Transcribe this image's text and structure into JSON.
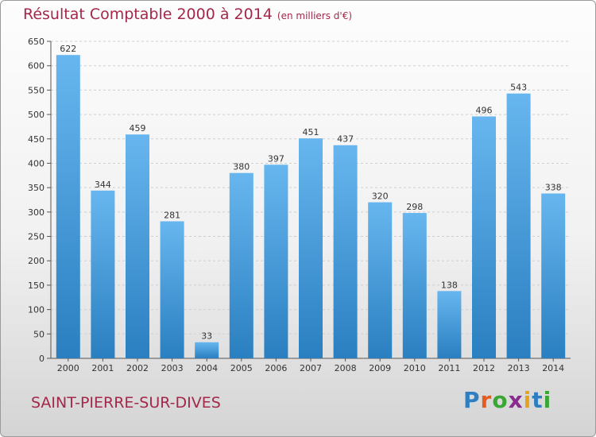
{
  "header": {
    "title": "Résultat Comptable 2000 à 2014",
    "subtitle": "(en milliers d'€)"
  },
  "footer": {
    "city": "SAINT-PIERRE-SUR-DIVES",
    "logo_letters": [
      "P",
      "r",
      "o",
      "x",
      "i",
      "t",
      "i"
    ],
    "logo_colors": [
      "#2e7fc2",
      "#e65c1e",
      "#3aa635",
      "#8a2b8f",
      "#e6a21e",
      "#2e7fc2",
      "#3aa635"
    ]
  },
  "chart_data": {
    "type": "bar",
    "title": "Résultat Comptable 2000 à 2014",
    "subtitle": "(en milliers d'€)",
    "categories": [
      "2000",
      "2001",
      "2002",
      "2003",
      "2004",
      "2005",
      "2006",
      "2007",
      "2008",
      "2009",
      "2010",
      "2011",
      "2012",
      "2013",
      "2014"
    ],
    "values": [
      622,
      344,
      459,
      281,
      33,
      380,
      397,
      451,
      437,
      320,
      298,
      138,
      496,
      543,
      338
    ],
    "ylim": [
      0,
      650
    ],
    "yticks": [
      0,
      50,
      100,
      150,
      200,
      250,
      300,
      350,
      400,
      450,
      500,
      550,
      600,
      650
    ],
    "grid": true,
    "bar_color_top": "#67b6ef",
    "bar_color_bottom": "#2a7fc0",
    "title_color": "#a3284a"
  }
}
